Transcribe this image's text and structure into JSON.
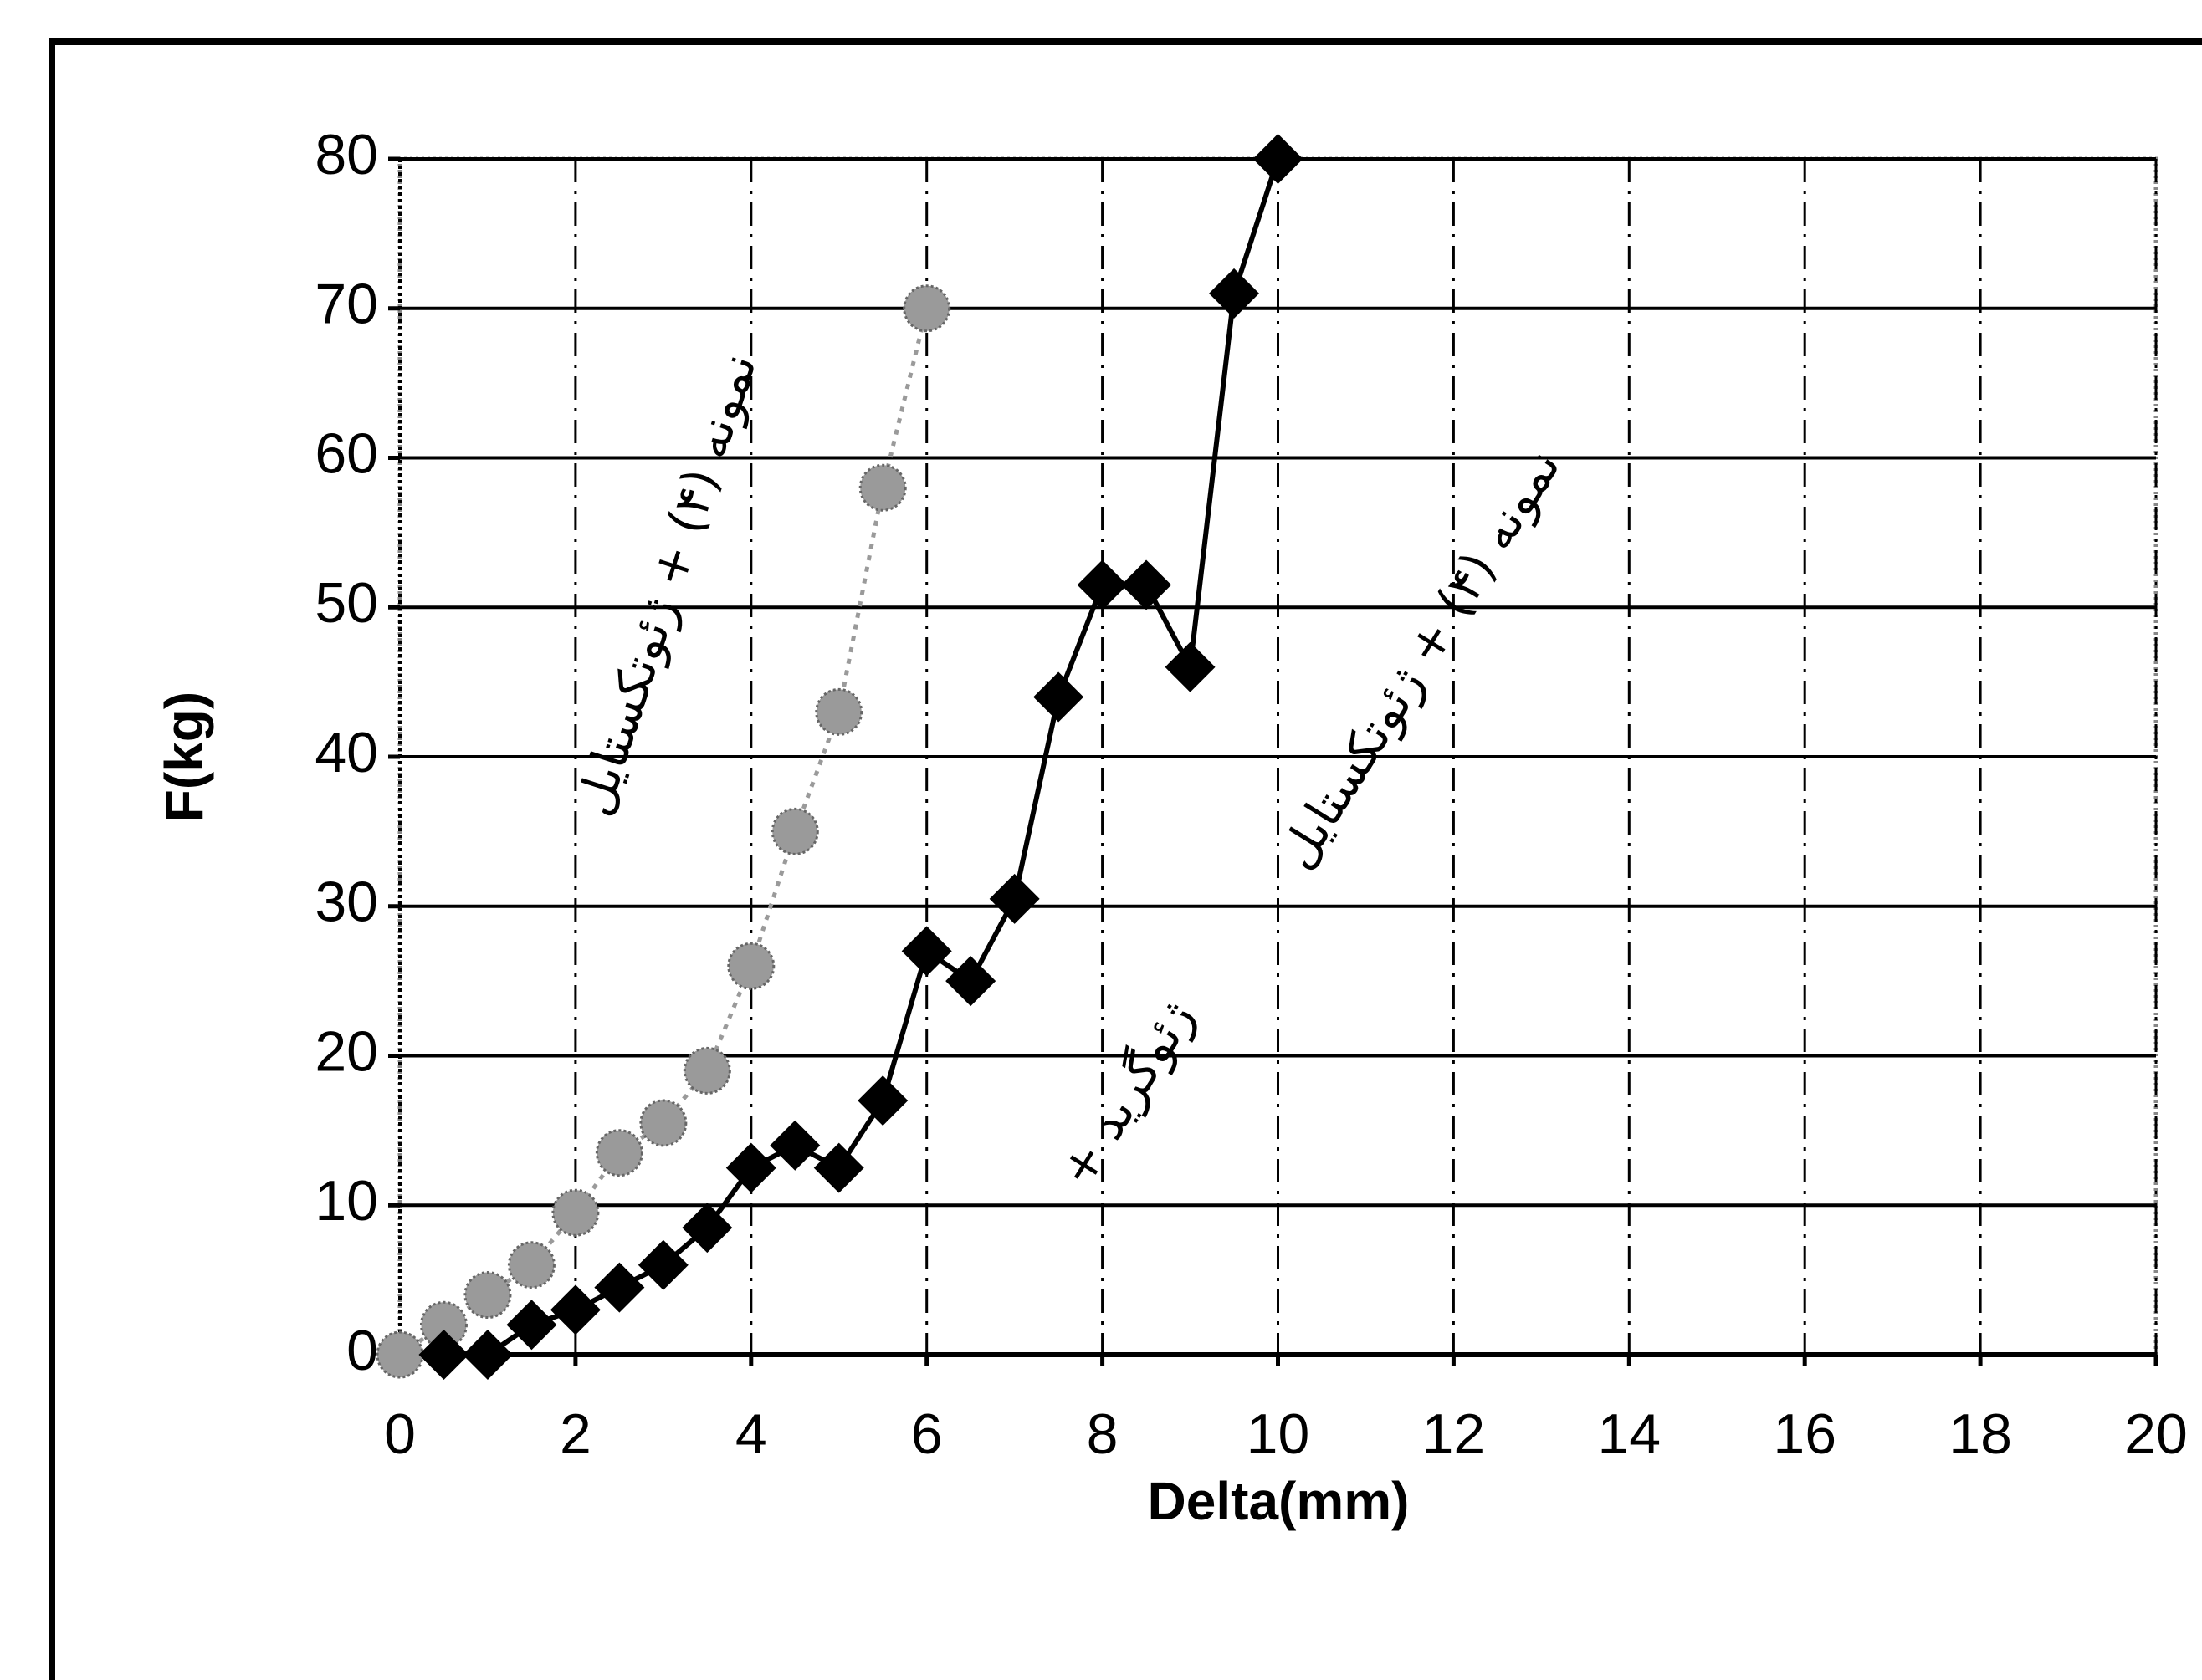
{
  "chart_data": {
    "type": "line",
    "xlabel": "Delta(mm)",
    "ylabel": "F(kg)",
    "xlim": [
      0,
      20
    ],
    "xticks": [
      0,
      2,
      4,
      6,
      8,
      10,
      12,
      14,
      16,
      18,
      20
    ],
    "ylim": [
      0,
      80
    ],
    "yticks": [
      0,
      10,
      20,
      30,
      40,
      50,
      60,
      70,
      80
    ],
    "grid": true,
    "annotations": [
      "نمونه (۴) + ژئوتکستایل",
      "نمونه (۴) + ژئوتکستایل",
      "+ ژئوگرید"
    ],
    "series": [
      {
        "color": "#9a9a9a",
        "marker": "circle",
        "line_style": "dotted",
        "x": [
          0,
          0.5,
          1,
          1.5,
          2,
          2.5,
          3,
          3.5,
          4,
          4.5,
          5,
          5.5,
          6
        ],
        "values": [
          0,
          2,
          4,
          6,
          9.5,
          13.5,
          15.5,
          19,
          26,
          35,
          43,
          58,
          70
        ]
      },
      {
        "color": "#000000",
        "marker": "diamond",
        "line_style": "solid",
        "x": [
          0.5,
          1,
          1.5,
          2,
          2.5,
          3,
          3.5,
          4,
          4.5,
          5,
          5.5,
          6,
          6.5,
          7,
          7.5,
          8,
          8.5,
          9,
          9.5,
          10
        ],
        "values": [
          0,
          0,
          2,
          3,
          4.5,
          6,
          8.5,
          12.5,
          14,
          12.5,
          17,
          27,
          25,
          30.5,
          44,
          51.5,
          51.5,
          46,
          71,
          80
        ]
      }
    ]
  }
}
